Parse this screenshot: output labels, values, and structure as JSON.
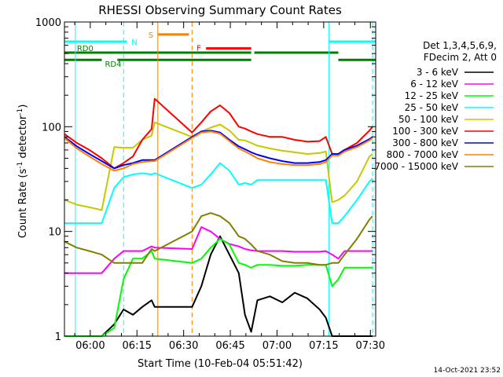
{
  "chart_data": {
    "type": "line",
    "title": "RHESSI Observing Summary Count Rates",
    "xlabel": "Start Time (10-Feb-04 05:51:42)",
    "ylabel_main": "Count Rate (s",
    "ylabel_sup": "-1",
    "ylabel_tail": " detector",
    "ylabel_close": ")",
    "x_unit": "minutes after 05:51:42",
    "xlim": [
      0,
      100
    ],
    "ylim": [
      1,
      1000
    ],
    "yscale": "log",
    "x_ticks": [
      {
        "label": "06:00",
        "value": 8.3
      },
      {
        "label": "06:15",
        "value": 23.3
      },
      {
        "label": "06:30",
        "value": 38.3
      },
      {
        "label": "06:45",
        "value": 53.3
      },
      {
        "label": "07:00",
        "value": 68.3
      },
      {
        "label": "07:15",
        "value": 83.3
      },
      {
        "label": "07:30",
        "value": 98.3
      }
    ],
    "y_ticks": [
      {
        "label": "1",
        "value": 1
      },
      {
        "label": "10",
        "value": 10
      },
      {
        "label": "100",
        "value": 100
      },
      {
        "label": "1000",
        "value": 1000
      }
    ],
    "legend_header": [
      "Det 1,3,4,5,6,9,",
      "FDecim 2, Att 0"
    ],
    "timestamp": "14-Oct-2021 23:52",
    "flags": [
      {
        "label": "N",
        "color": "#00ffff",
        "segments": [
          [
            0,
            20
          ],
          [
            85,
            100
          ]
        ],
        "level": 650
      },
      {
        "label": "S",
        "color": "#ff8000",
        "segments": [
          [
            30,
            40
          ]
        ],
        "level": 760
      },
      {
        "label": "F",
        "color": "#ff0000",
        "segments": [
          [
            45.5,
            60
          ]
        ],
        "level": 560
      },
      {
        "label": "RD0",
        "color": "#008000",
        "segments": [
          [
            0,
            60
          ],
          [
            61,
            88
          ]
        ],
        "level": 510
      },
      {
        "label": "RD4",
        "color": "#008000",
        "segments": [
          [
            0,
            12
          ],
          [
            17,
            60
          ],
          [
            88,
            100
          ]
        ],
        "level": 435
      }
    ],
    "vlines": [
      {
        "x": 3.5,
        "color": "#00ffff",
        "style": "solid"
      },
      {
        "x": 19,
        "color": "#00ffff",
        "style": "dashed"
      },
      {
        "x": 30,
        "color": "#ff8000",
        "style": "solid"
      },
      {
        "x": 41,
        "color": "#ff8000",
        "style": "dashed"
      },
      {
        "x": 85,
        "color": "#00ffff",
        "style": "solid"
      },
      {
        "x": 99,
        "color": "#00ffff",
        "style": "dashed"
      }
    ],
    "series": [
      {
        "name": "3 - 6 keV",
        "color": "#000000",
        "x": [
          0,
          4,
          8,
          12,
          16,
          19,
          22,
          25,
          28,
          29,
          41,
          44,
          47,
          50,
          53,
          56,
          58,
          60,
          62,
          66,
          70,
          74,
          78,
          82,
          84,
          86,
          88,
          90,
          94,
          98,
          99
        ],
        "y": [
          1,
          1,
          1,
          1,
          1.3,
          1.8,
          1.6,
          1.9,
          2.2,
          1.9,
          1.9,
          3,
          6,
          9,
          6,
          4,
          1.6,
          1.1,
          2.2,
          2.4,
          2.1,
          2.6,
          2.3,
          1.8,
          1.5,
          1,
          1,
          1,
          1,
          1,
          1
        ]
      },
      {
        "name": "6 - 12 keV",
        "color": "#ff00ff",
        "x": [
          0,
          4,
          8,
          12,
          16,
          19,
          22,
          25,
          28,
          29,
          41,
          44,
          47,
          50,
          53,
          56,
          58,
          60,
          62,
          66,
          70,
          74,
          78,
          82,
          84,
          86,
          88,
          90,
          94,
          98,
          99
        ],
        "y": [
          4,
          4,
          4,
          4,
          5.5,
          6.5,
          6.5,
          6.5,
          7.2,
          7,
          6.8,
          11,
          10,
          8.5,
          7.6,
          7.2,
          6.8,
          6.6,
          6.5,
          6.5,
          6.5,
          6.4,
          6.4,
          6.4,
          6.5,
          6,
          5.5,
          6.5,
          6.5,
          6.5,
          6.5
        ]
      },
      {
        "name": "12 - 25 keV",
        "color": "#00ff00",
        "x": [
          0,
          4,
          8,
          12,
          16,
          19,
          22,
          25,
          28,
          29,
          41,
          44,
          47,
          50,
          53,
          56,
          58,
          60,
          62,
          66,
          70,
          74,
          78,
          82,
          84,
          86,
          88,
          90,
          94,
          98,
          99
        ],
        "y": [
          1,
          1,
          1,
          1,
          1.2,
          3.5,
          5.5,
          5.5,
          6.5,
          5.5,
          5,
          5.5,
          7,
          8.5,
          7.5,
          5,
          4.8,
          4.5,
          4.8,
          4.8,
          4.7,
          4.7,
          4.8,
          4.8,
          4.8,
          3,
          3.5,
          4.5,
          4.5,
          4.5,
          4.5
        ]
      },
      {
        "name": "25 - 50 keV",
        "color": "#00ffff",
        "x": [
          0,
          4,
          8,
          12,
          16,
          19,
          22,
          25,
          28,
          29,
          41,
          44,
          47,
          50,
          53,
          56,
          58,
          60,
          62,
          66,
          70,
          74,
          78,
          82,
          84,
          86,
          88,
          90,
          94,
          98,
          99
        ],
        "y": [
          12,
          12,
          12,
          12,
          26,
          33,
          35,
          36,
          35,
          36,
          26,
          28,
          35,
          45,
          38,
          28,
          29,
          28,
          31,
          31,
          31,
          31,
          31,
          31,
          31,
          12,
          12,
          14,
          20,
          30,
          32
        ]
      },
      {
        "name": "50 - 100 keV",
        "color": "#c8c800",
        "x": [
          0,
          4,
          8,
          12,
          16,
          19,
          22,
          25,
          28,
          29,
          41,
          44,
          47,
          50,
          53,
          56,
          58,
          60,
          62,
          66,
          70,
          74,
          78,
          82,
          84,
          86,
          88,
          90,
          94,
          98,
          99
        ],
        "y": [
          20,
          18,
          17,
          16,
          64,
          63,
          63,
          75,
          82,
          110,
          80,
          90,
          98,
          105,
          92,
          75,
          74,
          70,
          66,
          62,
          59,
          57,
          55,
          56,
          58,
          19,
          20,
          22,
          30,
          52,
          55
        ]
      },
      {
        "name": "100 - 300 keV",
        "color": "#ff0000",
        "x": [
          0,
          4,
          8,
          12,
          16,
          19,
          22,
          25,
          28,
          29,
          41,
          44,
          47,
          50,
          53,
          56,
          58,
          60,
          62,
          66,
          70,
          74,
          78,
          82,
          84,
          86,
          88,
          90,
          94,
          98,
          99
        ],
        "y": [
          85,
          70,
          60,
          50,
          40,
          45,
          52,
          75,
          95,
          185,
          88,
          110,
          140,
          160,
          135,
          100,
          96,
          90,
          85,
          80,
          80,
          75,
          72,
          73,
          80,
          55,
          55,
          60,
          70,
          92,
          100
        ]
      },
      {
        "name": "300 - 800 keV",
        "color": "#0000ff",
        "x": [
          0,
          4,
          8,
          12,
          16,
          19,
          22,
          25,
          28,
          29,
          41,
          44,
          47,
          50,
          53,
          56,
          58,
          60,
          62,
          66,
          70,
          74,
          78,
          82,
          84,
          86,
          88,
          90,
          94,
          98,
          99
        ],
        "y": [
          80,
          65,
          55,
          47,
          40,
          43,
          45,
          48,
          48,
          48,
          80,
          90,
          92,
          88,
          75,
          65,
          61,
          57,
          54,
          50,
          47,
          45,
          45,
          46,
          48,
          55,
          55,
          60,
          66,
          76,
          80
        ]
      },
      {
        "name": "800 - 7000 keV",
        "color": "#ff8000",
        "x": [
          0,
          4,
          8,
          12,
          16,
          19,
          22,
          25,
          28,
          29,
          41,
          44,
          47,
          50,
          53,
          56,
          58,
          60,
          62,
          66,
          70,
          74,
          78,
          82,
          84,
          86,
          88,
          90,
          94,
          98,
          99
        ],
        "y": [
          78,
          62,
          52,
          44,
          38,
          40,
          44,
          46,
          47,
          47,
          78,
          88,
          90,
          86,
          73,
          62,
          58,
          54,
          50,
          46,
          44,
          43,
          43,
          44,
          46,
          53,
          53,
          58,
          64,
          74,
          78
        ]
      },
      {
        "name": "7000 - 15000 keV",
        "color": "#808000",
        "x": [
          0,
          4,
          8,
          12,
          16,
          19,
          22,
          25,
          28,
          29,
          41,
          44,
          47,
          50,
          53,
          56,
          58,
          60,
          62,
          66,
          70,
          74,
          78,
          82,
          84,
          86,
          88,
          90,
          94,
          98,
          99
        ],
        "y": [
          8,
          7,
          6.5,
          6,
          5,
          5,
          5,
          5,
          6.8,
          6.5,
          10,
          14,
          15,
          14,
          12,
          9,
          8.5,
          7.5,
          6.5,
          6,
          5.2,
          5,
          5,
          4.8,
          4.8,
          5,
          5,
          6,
          8.5,
          13,
          14
        ]
      }
    ]
  }
}
